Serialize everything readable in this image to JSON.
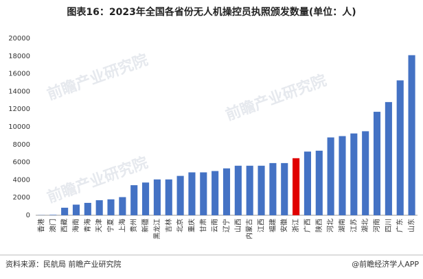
{
  "chart_data": {
    "type": "bar",
    "title": "图表16：2023年全国各省份无人机操控员执照颁发数量(单位：人)",
    "categories": [
      "香港",
      "澳门",
      "西藏",
      "海南",
      "青海",
      "天津",
      "宁夏",
      "上海",
      "贵州",
      "新疆",
      "黑龙江",
      "吉林",
      "北京",
      "重庆",
      "甘肃",
      "云南",
      "辽宁",
      "山西",
      "内蒙古",
      "江西",
      "福建",
      "安徽",
      "浙江",
      "广西",
      "陕西",
      "河北",
      "湖南",
      "江苏",
      "湖北",
      "河南",
      "四川",
      "广东",
      "山东"
    ],
    "values": [
      20,
      50,
      850,
      1200,
      1400,
      1700,
      1800,
      2050,
      3400,
      3700,
      4050,
      4050,
      4450,
      4850,
      4850,
      5000,
      5300,
      5600,
      5600,
      5600,
      5900,
      5900,
      6450,
      7200,
      7300,
      8800,
      8950,
      9250,
      9500,
      11700,
      12800,
      15250,
      18100
    ],
    "colors": [
      "#4472c4",
      "#4472c4",
      "#4472c4",
      "#4472c4",
      "#4472c4",
      "#4472c4",
      "#4472c4",
      "#4472c4",
      "#4472c4",
      "#4472c4",
      "#4472c4",
      "#4472c4",
      "#4472c4",
      "#4472c4",
      "#4472c4",
      "#4472c4",
      "#4472c4",
      "#4472c4",
      "#4472c4",
      "#4472c4",
      "#4472c4",
      "#4472c4",
      "#e00000",
      "#4472c4",
      "#4472c4",
      "#4472c4",
      "#4472c4",
      "#4472c4",
      "#4472c4",
      "#4472c4",
      "#4472c4",
      "#4472c4",
      "#4472c4"
    ],
    "ylim": [
      0,
      20000
    ],
    "yticks": [
      0,
      2000,
      4000,
      6000,
      8000,
      10000,
      12000,
      14000,
      16000,
      18000,
      20000
    ],
    "grid": false,
    "source": "资料来源：民航局 前瞻产业研究院",
    "credit": "@前瞻经济学人APP",
    "watermark": "前瞻产业研究院"
  }
}
